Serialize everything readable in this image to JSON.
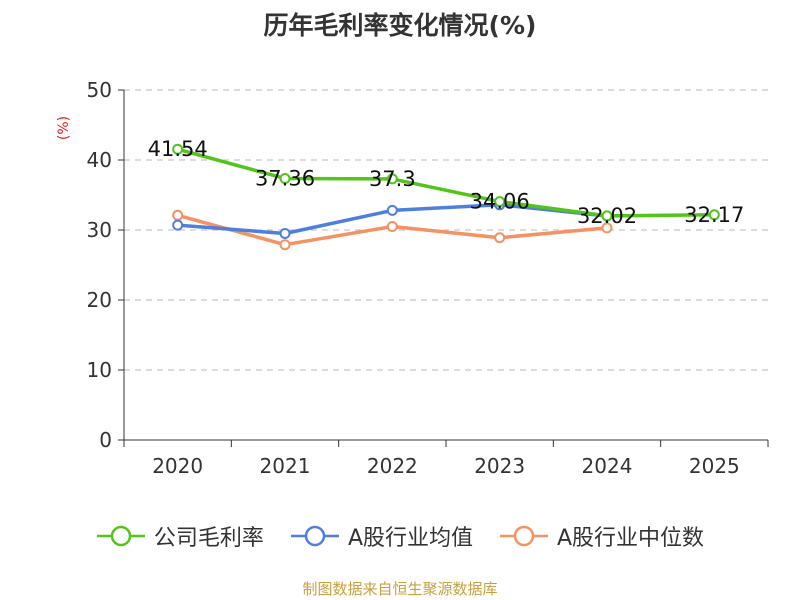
{
  "chart_data": {
    "type": "line",
    "title": "历年毛利率变化情况(%)",
    "ylabel": "(%)",
    "xlabel": "",
    "categories": [
      "2020",
      "2021",
      "2022",
      "2023",
      "2024",
      "2025"
    ],
    "ylim": [
      0,
      50
    ],
    "yticks": [
      0,
      10,
      20,
      30,
      40,
      50
    ],
    "grid": "horizontal-dashed",
    "series": [
      {
        "name": "公司毛利率",
        "color": "#52c41a",
        "values": [
          41.54,
          37.36,
          37.3,
          34.06,
          32.02,
          32.17
        ],
        "labels": [
          "41.54",
          "37.36",
          "37.3",
          "34.06",
          "32.02",
          "32.17"
        ]
      },
      {
        "name": "A股行业均值",
        "color": "#4e7fdc",
        "values": [
          30.7,
          29.5,
          32.8,
          33.6,
          32.0,
          null
        ],
        "labels": []
      },
      {
        "name": "A股行业中位数",
        "color": "#f59263",
        "values": [
          32.1,
          27.9,
          30.5,
          28.9,
          30.3,
          null
        ],
        "labels": []
      }
    ],
    "legend_position": "bottom"
  },
  "colors": {
    "axis": "#333333",
    "grid": "#c8c8c8",
    "ylabel": "#e02020",
    "source": "#c8a040"
  },
  "source_text": "制图数据来自恒生聚源数据库"
}
